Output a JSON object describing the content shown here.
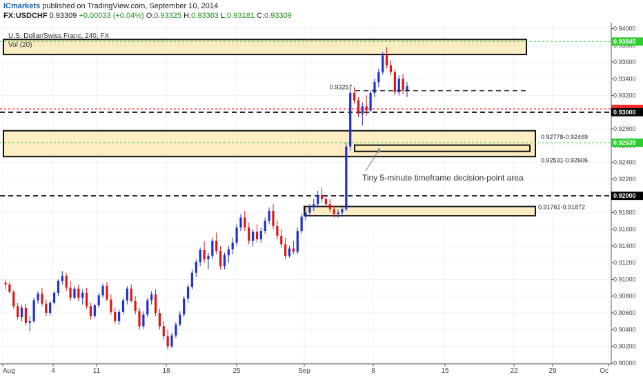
{
  "header": {
    "brand": "ICmarkets",
    "published": "published on TradingView.com, September 10, 2014",
    "symbol": "FX:USDCHF",
    "last": "0.93309",
    "change": "+0.00033 (+0.04%)",
    "open_label": "O:",
    "open": "0.93325",
    "high_label": "H:",
    "high": "0.93363",
    "low_label": "L:",
    "low": "0.93181",
    "close_label": "C:",
    "close": "0.93309"
  },
  "legend": {
    "title": "U.S. Dollar/Swiss Franc, 240, FX",
    "volume": "Vol (20)"
  },
  "colors": {
    "up": "#1f2fd6",
    "down": "#e01414",
    "zone_fill": "#fbeab7",
    "green_level": "#2ecc2e",
    "red_level": "#ff2a2a",
    "axis_label_bg": "#000000",
    "green_label_bg": "#2ecc2e",
    "red_label_bg": "#ff2a2a"
  },
  "chart_data": {
    "type": "candlestick",
    "symbol": "USDCHF",
    "timeframe": "240",
    "x_ticks": [
      "Aug",
      "4",
      "11",
      "18",
      "25",
      "Sep",
      "8",
      "15",
      "22",
      "29",
      "Oc"
    ],
    "y_ticks": [
      "0.90000",
      "0.90200",
      "0.90400",
      "0.90600",
      "0.90800",
      "0.91000",
      "0.91200",
      "0.91400",
      "0.91600",
      "0.91800",
      "0.92000",
      "0.92200",
      "0.92400",
      "0.92600",
      "0.92800",
      "0.93000",
      "0.93200",
      "0.93400",
      "0.93600",
      "0.93800",
      "0.94000"
    ],
    "ylim": [
      0.8999,
      0.9407
    ],
    "candles": [
      [
        0.9096,
        0.91,
        0.9088,
        0.9094
      ],
      [
        0.9094,
        0.9097,
        0.9083,
        0.9085
      ],
      [
        0.9085,
        0.9087,
        0.9065,
        0.9068
      ],
      [
        0.9068,
        0.9072,
        0.9052,
        0.9055
      ],
      [
        0.9055,
        0.907,
        0.905,
        0.9066
      ],
      [
        0.9066,
        0.9071,
        0.9045,
        0.9048
      ],
      [
        0.9048,
        0.9056,
        0.9038,
        0.905
      ],
      [
        0.905,
        0.9078,
        0.9048,
        0.9075
      ],
      [
        0.9075,
        0.9086,
        0.9071,
        0.9083
      ],
      [
        0.9083,
        0.909,
        0.9068,
        0.9071
      ],
      [
        0.9071,
        0.9076,
        0.9056,
        0.906
      ],
      [
        0.906,
        0.9074,
        0.9057,
        0.9072
      ],
      [
        0.9072,
        0.9086,
        0.907,
        0.9084
      ],
      [
        0.9084,
        0.91,
        0.908,
        0.9098
      ],
      [
        0.9098,
        0.911,
        0.9094,
        0.9104
      ],
      [
        0.9104,
        0.9108,
        0.9086,
        0.909
      ],
      [
        0.909,
        0.9098,
        0.9074,
        0.9078
      ],
      [
        0.9078,
        0.9092,
        0.9076,
        0.9089
      ],
      [
        0.9089,
        0.9094,
        0.9074,
        0.9078
      ],
      [
        0.9078,
        0.9088,
        0.907,
        0.9084
      ],
      [
        0.9084,
        0.909,
        0.9065,
        0.9068
      ],
      [
        0.9068,
        0.9072,
        0.9052,
        0.9056
      ],
      [
        0.9056,
        0.9071,
        0.9054,
        0.9069
      ],
      [
        0.9069,
        0.9084,
        0.9066,
        0.9081
      ],
      [
        0.9081,
        0.9095,
        0.9078,
        0.9092
      ],
      [
        0.9092,
        0.9097,
        0.9074,
        0.9076
      ],
      [
        0.9076,
        0.9082,
        0.9058,
        0.9061
      ],
      [
        0.9061,
        0.9066,
        0.9047,
        0.905
      ],
      [
        0.905,
        0.9064,
        0.9046,
        0.9061
      ],
      [
        0.9061,
        0.9078,
        0.9058,
        0.9075
      ],
      [
        0.9075,
        0.9092,
        0.907,
        0.9089
      ],
      [
        0.9089,
        0.9094,
        0.9072,
        0.9074
      ],
      [
        0.9074,
        0.908,
        0.9058,
        0.9062
      ],
      [
        0.9062,
        0.9066,
        0.904,
        0.9044
      ],
      [
        0.9044,
        0.9062,
        0.9041,
        0.9058
      ],
      [
        0.9058,
        0.9078,
        0.9055,
        0.9075
      ],
      [
        0.9075,
        0.9086,
        0.907,
        0.9082
      ],
      [
        0.9082,
        0.9088,
        0.9056,
        0.906
      ],
      [
        0.906,
        0.9065,
        0.904,
        0.9044
      ],
      [
        0.9044,
        0.905,
        0.9028,
        0.9032
      ],
      [
        0.9032,
        0.904,
        0.9016,
        0.902
      ],
      [
        0.902,
        0.9036,
        0.9018,
        0.9033
      ],
      [
        0.9033,
        0.9049,
        0.903,
        0.9046
      ],
      [
        0.9046,
        0.9062,
        0.9044,
        0.9058
      ],
      [
        0.9058,
        0.908,
        0.9055,
        0.9077
      ],
      [
        0.9077,
        0.9094,
        0.9072,
        0.9091
      ],
      [
        0.9091,
        0.9112,
        0.9088,
        0.9108
      ],
      [
        0.9108,
        0.9124,
        0.9103,
        0.9121
      ],
      [
        0.9121,
        0.9138,
        0.9116,
        0.9135
      ],
      [
        0.9135,
        0.9146,
        0.912,
        0.9124
      ],
      [
        0.9124,
        0.9132,
        0.9112,
        0.9128
      ],
      [
        0.9128,
        0.915,
        0.9124,
        0.9146
      ],
      [
        0.9146,
        0.9156,
        0.913,
        0.9134
      ],
      [
        0.9134,
        0.914,
        0.9112,
        0.9116
      ],
      [
        0.9116,
        0.9132,
        0.9112,
        0.9129
      ],
      [
        0.9129,
        0.914,
        0.912,
        0.9136
      ],
      [
        0.9136,
        0.915,
        0.913,
        0.9144
      ],
      [
        0.9144,
        0.9166,
        0.914,
        0.9162
      ],
      [
        0.9162,
        0.9178,
        0.9158,
        0.9174
      ],
      [
        0.9174,
        0.9182,
        0.9158,
        0.9162
      ],
      [
        0.9162,
        0.9168,
        0.9142,
        0.9146
      ],
      [
        0.9146,
        0.916,
        0.914,
        0.9157
      ],
      [
        0.9157,
        0.9166,
        0.9144,
        0.9148
      ],
      [
        0.9148,
        0.9162,
        0.9144,
        0.9158
      ],
      [
        0.9158,
        0.9174,
        0.9154,
        0.917
      ],
      [
        0.917,
        0.9186,
        0.9166,
        0.9182
      ],
      [
        0.9182,
        0.919,
        0.916,
        0.9164
      ],
      [
        0.9164,
        0.917,
        0.9148,
        0.9152
      ],
      [
        0.9152,
        0.916,
        0.9138,
        0.9142
      ],
      [
        0.9142,
        0.915,
        0.9124,
        0.9128
      ],
      [
        0.9128,
        0.914,
        0.9126,
        0.9137
      ],
      [
        0.9137,
        0.9146,
        0.913,
        0.9133
      ],
      [
        0.9133,
        0.9162,
        0.913,
        0.9158
      ],
      [
        0.9158,
        0.9178,
        0.9155,
        0.9175
      ],
      [
        0.9175,
        0.9186,
        0.917,
        0.918
      ],
      [
        0.918,
        0.919,
        0.9175,
        0.9186
      ],
      [
        0.9186,
        0.9196,
        0.9182,
        0.919
      ],
      [
        0.919,
        0.9206,
        0.9186,
        0.9201
      ],
      [
        0.9201,
        0.921,
        0.9192,
        0.9196
      ],
      [
        0.9196,
        0.92,
        0.9186,
        0.919
      ],
      [
        0.919,
        0.9196,
        0.918,
        0.9184
      ],
      [
        0.9184,
        0.9188,
        0.9174,
        0.9178
      ],
      [
        0.9178,
        0.9184,
        0.9174,
        0.918
      ],
      [
        0.918,
        0.9186,
        0.9175,
        0.9184
      ],
      [
        0.9184,
        0.9264,
        0.9182,
        0.9259
      ],
      [
        0.9259,
        0.933,
        0.9254,
        0.9323
      ],
      [
        0.9323,
        0.933,
        0.931,
        0.9314
      ],
      [
        0.9314,
        0.9318,
        0.9294,
        0.9298
      ],
      [
        0.9298,
        0.9312,
        0.9284,
        0.9307
      ],
      [
        0.9307,
        0.932,
        0.9296,
        0.9302
      ],
      [
        0.9302,
        0.9326,
        0.93,
        0.9323
      ],
      [
        0.9323,
        0.934,
        0.9318,
        0.9336
      ],
      [
        0.9336,
        0.9352,
        0.933,
        0.9348
      ],
      [
        0.9348,
        0.9372,
        0.9345,
        0.9368
      ],
      [
        0.9368,
        0.9378,
        0.9352,
        0.9356
      ],
      [
        0.9356,
        0.9362,
        0.9344,
        0.9348
      ],
      [
        0.9348,
        0.9352,
        0.932,
        0.9324
      ],
      [
        0.9324,
        0.9344,
        0.932,
        0.934
      ],
      [
        0.934,
        0.9346,
        0.9322,
        0.9326
      ],
      [
        0.9326,
        0.9336,
        0.9318,
        0.9331
      ]
    ],
    "levels": [
      {
        "price": 0.93845,
        "label": "0.93845",
        "style": "green-dotted"
      },
      {
        "price": 0.9304,
        "label": "",
        "style": "red-dotted"
      },
      {
        "price": 0.93,
        "label": "0.93000",
        "style": "black-dashed"
      },
      {
        "price": 0.92635,
        "label": "0.92635",
        "style": "green-dotted"
      },
      {
        "price": 0.92,
        "label": "0.92000",
        "style": "black-dashed"
      }
    ],
    "zones": [
      {
        "top": 0.9387,
        "bottom": 0.9369,
        "label": ""
      },
      {
        "top": 0.92778,
        "bottom": 0.92469,
        "label": "0.92778-0.92469"
      },
      {
        "top": 0.92606,
        "bottom": 0.92531,
        "label": "0.92531-0.92606"
      },
      {
        "top": 0.91872,
        "bottom": 0.91761,
        "label": "0.91761-0.91872"
      }
    ],
    "annotations": [
      {
        "price": 0.93257,
        "label": "0.93257"
      },
      {
        "text": "Tiny 5-minute timeframe decision-point area"
      }
    ]
  }
}
